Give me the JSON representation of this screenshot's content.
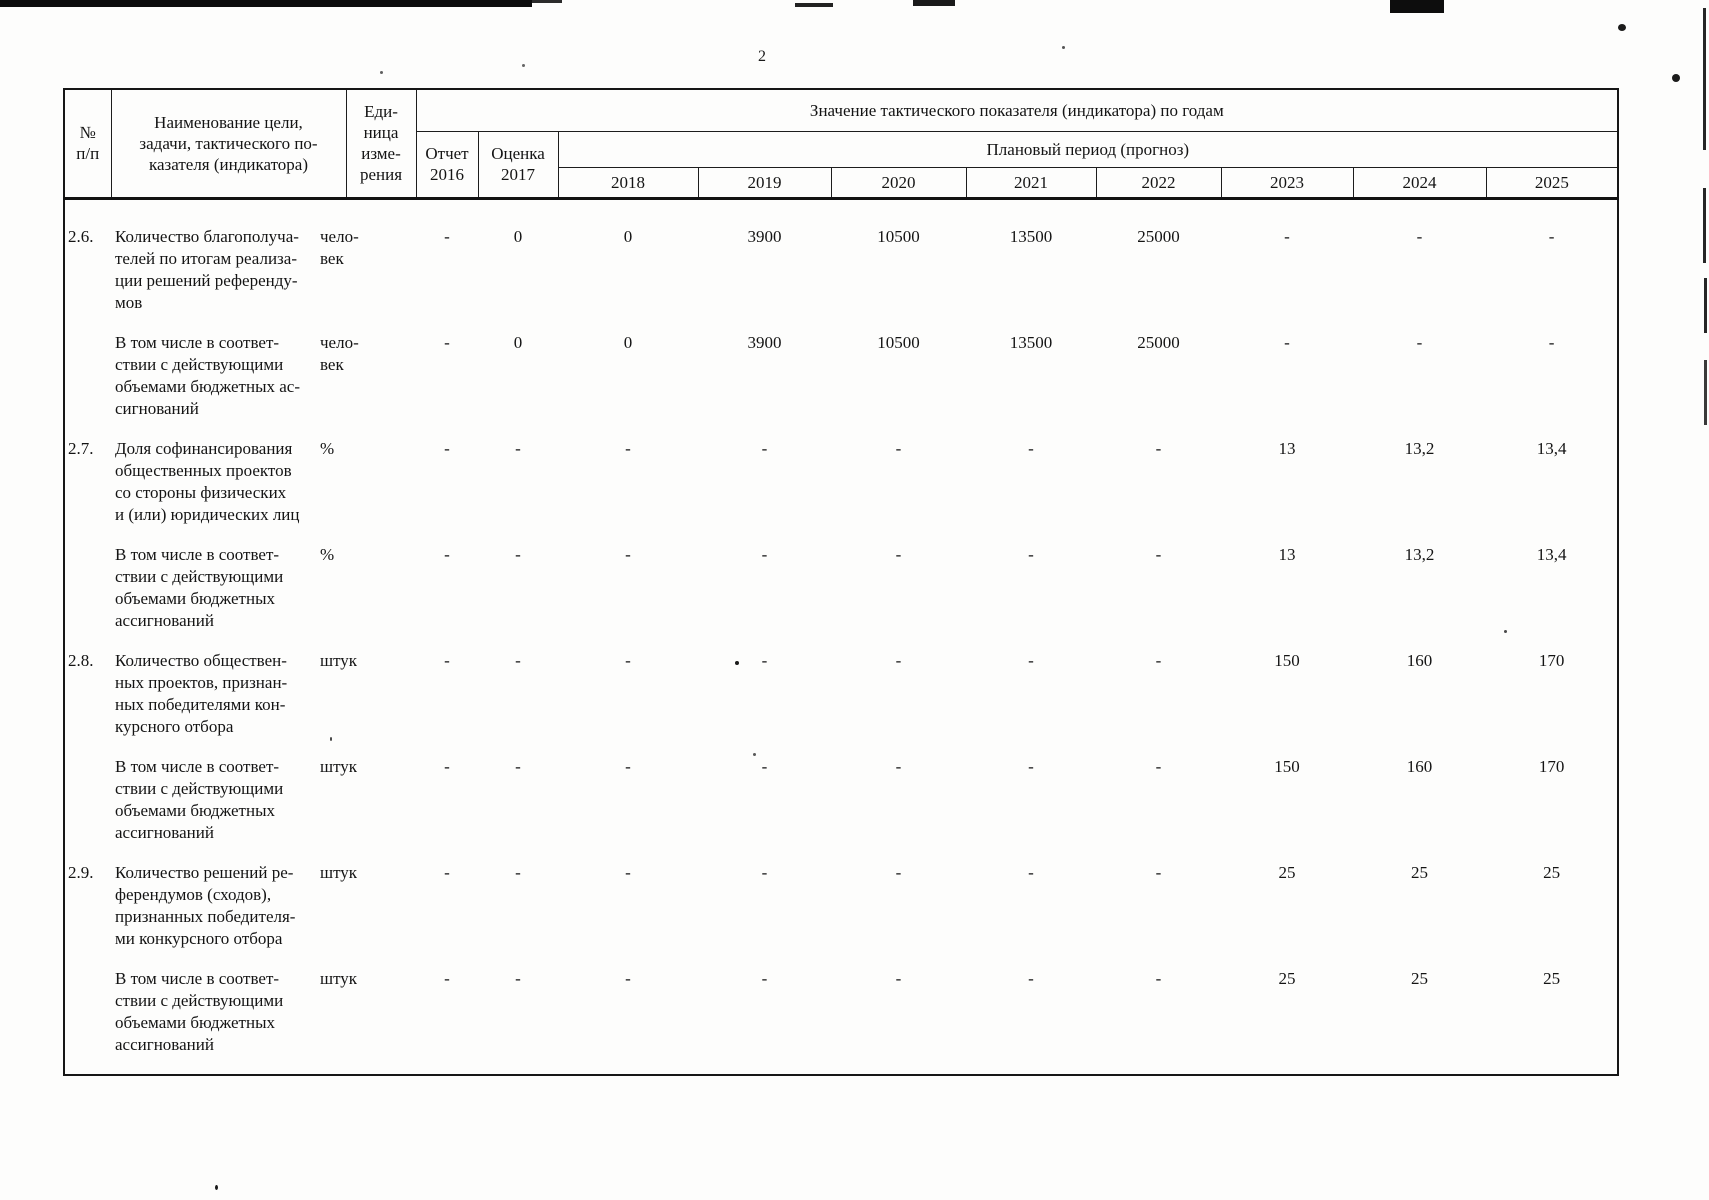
{
  "colors": {
    "paper": "#fdfdfc",
    "ink": "#161616"
  },
  "page": {
    "number": "2"
  },
  "table": {
    "header": {
      "col_num": "№\nп/п",
      "col_name": "Наименование цели,\nзадачи, тактического по-\nказателя (индикатора)",
      "col_unit": "Еди-\nница\nизме-\nрения",
      "col_value_group": "Значение тактического показателя (индикатора) по годам",
      "col_report": "Отчет\n2016",
      "col_estimate": "Оценка\n2017",
      "col_plan_group": "Плановый период (прогноз)",
      "years": [
        "2018",
        "2019",
        "2020",
        "2021",
        "2022",
        "2023",
        "2024",
        "2025"
      ]
    },
    "rows": [
      {
        "num": "2.6.",
        "name": "Количество благополуча-\nтелей по итогам реализа-\nции решений референду-\nмов",
        "unit": "чело-\nвек",
        "values": [
          "-",
          "0",
          "0",
          "3900",
          "10500",
          "13500",
          "25000",
          "-",
          "-",
          "-"
        ]
      },
      {
        "num": "",
        "name": "В том числе в соответ-\nствии с действующими\nобъемами бюджетных ас-\nсигнований",
        "unit": "чело-\nвек",
        "values": [
          "-",
          "0",
          "0",
          "3900",
          "10500",
          "13500",
          "25000",
          "-",
          "-",
          "-"
        ]
      },
      {
        "num": "2.7.",
        "name": "Доля софинансирования\nобщественных проектов\nсо стороны физических\nи (или) юридических лиц",
        "unit": "%",
        "values": [
          "-",
          "-",
          "-",
          "-",
          "-",
          "-",
          "-",
          "13",
          "13,2",
          "13,4"
        ]
      },
      {
        "num": "",
        "name": "В том числе в соответ-\nствии с действующими\nобъемами бюджетных\nассигнований",
        "unit": "%",
        "values": [
          "-",
          "-",
          "-",
          "-",
          "-",
          "-",
          "-",
          "13",
          "13,2",
          "13,4"
        ]
      },
      {
        "num": "2.8.",
        "name": "Количество обществен-\nных проектов, признан-\nных победителями кон-\nкурсного отбора",
        "unit": "штук",
        "values": [
          "-",
          "-",
          "-",
          "-",
          "-",
          "-",
          "-",
          "150",
          "160",
          "170"
        ]
      },
      {
        "num": "",
        "name": "В том числе в соответ-\nствии с действующими\nобъемами бюджетных\nассигнований",
        "unit": "штук",
        "values": [
          "-",
          "-",
          "-",
          "-",
          "-",
          "-",
          "-",
          "150",
          "160",
          "170"
        ]
      },
      {
        "num": "2.9.",
        "name": "Количество решений ре-\nферендумов (сходов),\nпризнанных победителя-\nми конкурсного отбора",
        "unit": "штук",
        "values": [
          "-",
          "-",
          "-",
          "-",
          "-",
          "-",
          "-",
          "25",
          "25",
          "25"
        ]
      },
      {
        "num": "",
        "name": "В том числе в соответ-\nствии с действующими\nобъемами бюджетных\nассигнований",
        "unit": "штук",
        "values": [
          "-",
          "-",
          "-",
          "-",
          "-",
          "-",
          "-",
          "25",
          "25",
          "25"
        ]
      }
    ]
  }
}
